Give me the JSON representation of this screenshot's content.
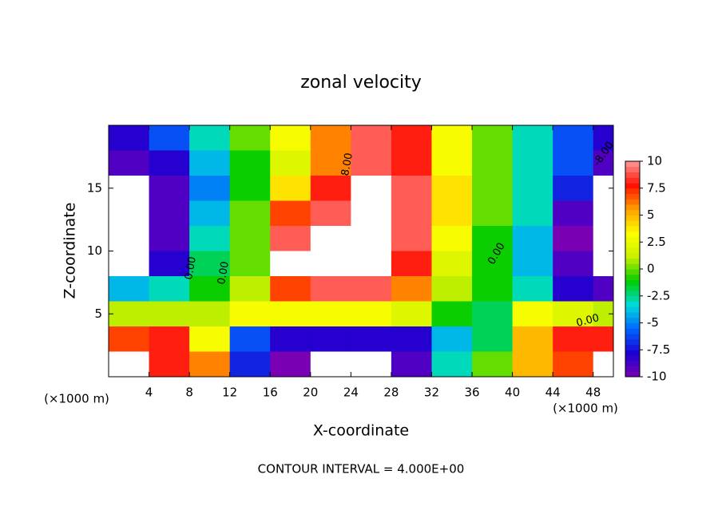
{
  "chart_data": {
    "type": "heatmap",
    "title": "zonal velocity",
    "x_label": "X-coordinate",
    "y_label": "Z-coordinate",
    "x_unit": "(×1000 m)",
    "footer": "CONTOUR INTERVAL = 4.000E+00",
    "x": [
      2,
      6,
      10,
      14,
      18,
      22,
      26,
      30,
      34,
      38,
      42,
      46,
      50
    ],
    "y": [
      19,
      17,
      15,
      13,
      11,
      9,
      7,
      5,
      3,
      1
    ],
    "z": [
      [
        -8,
        -6,
        -3,
        0,
        3,
        6,
        9,
        8,
        3,
        0,
        -3,
        -6,
        -8
      ],
      [
        -9,
        -8,
        -4,
        -1,
        2,
        6,
        9,
        8,
        3,
        0,
        -3,
        -6,
        -9
      ],
      [
        -11,
        -9,
        -5,
        -1,
        4,
        8,
        11,
        9,
        4,
        0,
        -3,
        -7,
        -11
      ],
      [
        -11,
        -9,
        -4,
        0,
        7,
        9,
        11,
        9,
        4,
        0,
        -3,
        -9,
        -11
      ],
      [
        -11,
        -9,
        -3,
        0,
        9,
        11,
        11,
        9,
        3,
        -1,
        -4,
        -10,
        -11
      ],
      [
        -11,
        -8,
        -2,
        0,
        11,
        11,
        11,
        8,
        2,
        -1,
        -4,
        -9,
        -11
      ],
      [
        -4,
        -3,
        -1,
        1,
        7,
        9,
        9,
        6,
        1,
        -1,
        -3,
        -8,
        -9
      ],
      [
        1,
        1,
        1,
        3,
        3,
        3,
        3,
        2,
        -1,
        -2,
        3,
        2,
        1
      ],
      [
        7,
        8,
        3,
        -6,
        -8,
        -8,
        -8,
        -8,
        -4,
        -2,
        5,
        8,
        8
      ],
      [
        11,
        8,
        6,
        -7,
        -10,
        -11,
        -11,
        -9,
        -3,
        0,
        5,
        7,
        11
      ]
    ],
    "xlim": [
      0,
      50
    ],
    "ylim": [
      0,
      20
    ],
    "xticks": [
      4,
      8,
      12,
      16,
      20,
      24,
      28,
      32,
      36,
      40,
      44,
      48
    ],
    "yticks": [
      5,
      10,
      15
    ],
    "clim": [
      -10,
      10
    ],
    "cticks": [
      10,
      7.5,
      5,
      2.5,
      0,
      -2.5,
      -5,
      -7.5,
      -10
    ],
    "colorscale": [
      "#7a00b4",
      "#1c00d2",
      "#0064ff",
      "#00dcdc",
      "#00cc00",
      "#c8f000",
      "#ffff00",
      "#ffa000",
      "#ff1000",
      "#ff9a9a"
    ],
    "out_of_range_color": "#ffffff",
    "contour_labels": [
      "0.00",
      "0.00",
      "8.00",
      "0.00",
      "0.00",
      "-8.00"
    ]
  }
}
